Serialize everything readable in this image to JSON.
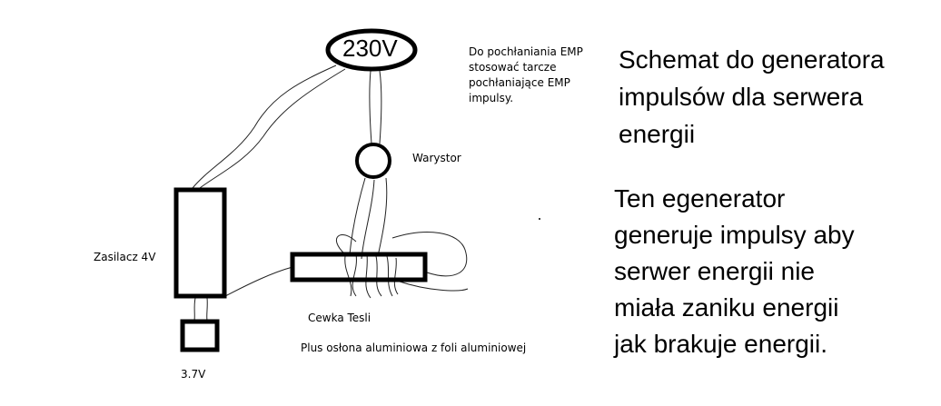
{
  "labels": {
    "voltage_main": "230V",
    "emp_note": [
      "Do pochłaniania EMP",
      "stosować tarcze",
      "pochłaniające EMP",
      "impulsy."
    ],
    "varistor": "Warystor",
    "power_supply": "Zasilacz 4V",
    "tesla_coil": "Cewka Tesli",
    "battery": "3.7V",
    "shield_note": "Plus osłona aluminiowa z foli aluminiowej"
  },
  "title_lines": [
    "Schemat do generatora",
    "impulsów dla serwera",
    "energii"
  ],
  "description_lines": [
    "Ten egenerator",
    "generuje impulsy aby",
    "serwer energii nie",
    "miała zaniku energii",
    "jak brakuje energii."
  ]
}
